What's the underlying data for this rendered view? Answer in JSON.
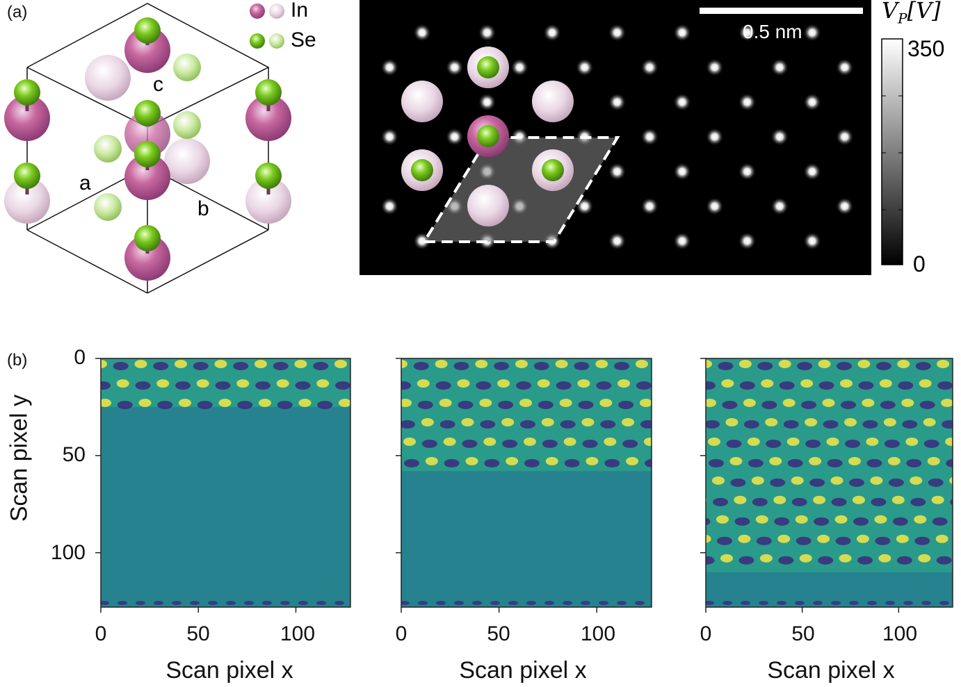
{
  "panel_a": {
    "label": "(a)",
    "legend": [
      {
        "element": "In",
        "colors": [
          "#b45a9a",
          "#e8d3e2"
        ]
      },
      {
        "element": "Se",
        "colors": [
          "#6dbb1e",
          "#c9e89a"
        ]
      }
    ],
    "axes": [
      "a",
      "b",
      "c"
    ],
    "scale_bar_text": "0.5 nm",
    "colorbar": {
      "title": "V_P [V]",
      "max": "350",
      "min": "0"
    }
  },
  "panel_b": {
    "label": "(b)",
    "ylabel": "Scan pixel y",
    "xlabel": "Scan pixel x",
    "plots": [
      {
        "xticks": [
          "0",
          "50",
          "100"
        ],
        "yticks": [
          "0",
          "50",
          "100"
        ]
      },
      {
        "xticks": [
          "0",
          "50",
          "100"
        ]
      },
      {
        "xticks": [
          "0",
          "50",
          "100"
        ]
      }
    ]
  },
  "chart_data": [
    {
      "type": "heatmap",
      "title": "",
      "xlabel": "Scan pixel x",
      "ylabel": "Scan pixel y",
      "xlim": [
        0,
        128
      ],
      "ylim": [
        128,
        0
      ],
      "reconstructed_rows_until": 25
    },
    {
      "type": "heatmap",
      "title": "",
      "xlabel": "Scan pixel x",
      "ylabel": "",
      "xlim": [
        0,
        128
      ],
      "ylim": [
        128,
        0
      ],
      "reconstructed_rows_until": 58
    },
    {
      "type": "heatmap",
      "title": "",
      "xlabel": "Scan pixel x",
      "ylabel": "",
      "xlim": [
        0,
        128
      ],
      "ylim": [
        128,
        0
      ],
      "reconstructed_rows_until": 110
    }
  ]
}
